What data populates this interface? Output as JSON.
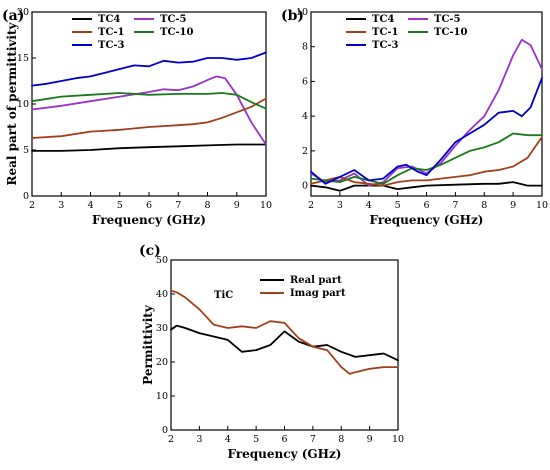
{
  "chart_data": [
    {
      "panel": "(a)",
      "type": "line",
      "xlabel": "Frequency (GHz)",
      "ylabel": "Real part of permittivity",
      "xlim": [
        2,
        10
      ],
      "ylim": [
        0,
        20
      ],
      "xticks": [
        2,
        3,
        4,
        5,
        6,
        7,
        8,
        9,
        10
      ],
      "yticks": [
        0,
        5,
        10,
        15,
        20
      ],
      "grid": false,
      "legend_placement": "top",
      "series": [
        {
          "name": "TC4",
          "color": "#000000",
          "x": [
            2,
            3,
            4,
            5,
            6,
            7,
            8,
            9,
            10
          ],
          "y": [
            4.9,
            4.9,
            5.0,
            5.2,
            5.3,
            5.4,
            5.5,
            5.6,
            5.6
          ]
        },
        {
          "name": "TC-5",
          "color": "#9933cc",
          "x": [
            2,
            3,
            4,
            5,
            6,
            6.5,
            7,
            7.5,
            8,
            8.3,
            8.6,
            9,
            9.5,
            10
          ],
          "y": [
            9.4,
            9.8,
            10.3,
            10.8,
            11.3,
            11.6,
            11.5,
            11.9,
            12.6,
            13.0,
            12.8,
            11.0,
            8.0,
            5.6
          ]
        },
        {
          "name": "TC-1",
          "color": "#a0401a",
          "x": [
            2,
            3,
            4,
            5,
            6,
            7,
            7.5,
            8,
            8.5,
            9,
            9.5,
            10
          ],
          "y": [
            6.3,
            6.5,
            7.0,
            7.2,
            7.5,
            7.7,
            7.8,
            8.0,
            8.5,
            9.1,
            9.7,
            10.6
          ]
        },
        {
          "name": "TC-10",
          "color": "#1a7a1a",
          "x": [
            2,
            3,
            4,
            5,
            6,
            7,
            8,
            8.5,
            9,
            9.5,
            10
          ],
          "y": [
            10.3,
            10.8,
            11.0,
            11.2,
            11.0,
            11.1,
            11.1,
            11.2,
            11.0,
            10.2,
            9.5
          ]
        },
        {
          "name": "TC-3",
          "color": "#0000cc",
          "x": [
            2,
            2.5,
            3,
            3.5,
            4,
            4.5,
            5,
            5.5,
            6,
            6.5,
            7,
            7.5,
            8,
            8.5,
            9,
            9.5,
            10
          ],
          "y": [
            12.0,
            12.2,
            12.5,
            12.8,
            13.0,
            13.4,
            13.8,
            14.2,
            14.1,
            14.7,
            14.5,
            14.6,
            15.0,
            15.0,
            14.8,
            15.0,
            15.6
          ]
        }
      ]
    },
    {
      "panel": "(b)",
      "type": "line",
      "xlabel": "Frequency (GHz)",
      "ylabel": "",
      "xlim": [
        2,
        10
      ],
      "ylim": [
        -0.6,
        10
      ],
      "xticks": [
        2,
        3,
        4,
        5,
        6,
        7,
        8,
        9,
        10
      ],
      "yticks": [
        0,
        2,
        4,
        6,
        8,
        10
      ],
      "grid": false,
      "legend_placement": "top",
      "series": [
        {
          "name": "TC4",
          "color": "#000000",
          "x": [
            2,
            2.5,
            3,
            3.5,
            4,
            4.5,
            5,
            5.5,
            6,
            7,
            8,
            8.5,
            9,
            9.5,
            10
          ],
          "y": [
            0.0,
            -0.1,
            -0.3,
            0.0,
            0.0,
            0.0,
            -0.2,
            -0.1,
            0.0,
            0.05,
            0.1,
            0.1,
            0.2,
            0.0,
            0.0
          ]
        },
        {
          "name": "TC-5",
          "color": "#9933cc",
          "x": [
            2,
            2.5,
            3,
            3.5,
            4,
            4.5,
            5,
            5.5,
            6,
            6.5,
            7,
            7.5,
            8,
            8.5,
            9,
            9.3,
            9.6,
            10
          ],
          "y": [
            0.7,
            0.2,
            0.3,
            0.7,
            0.0,
            0.2,
            1.0,
            1.1,
            0.7,
            1.3,
            2.3,
            3.2,
            4.0,
            5.5,
            7.5,
            8.4,
            8.1,
            6.7
          ]
        },
        {
          "name": "TC-1",
          "color": "#a0401a",
          "x": [
            2,
            2.5,
            3,
            3.5,
            4,
            4.5,
            5,
            5.5,
            6,
            6.5,
            7,
            7.5,
            8,
            8.5,
            9,
            9.5,
            10
          ],
          "y": [
            0.1,
            0.3,
            0.5,
            0.2,
            0.1,
            0.0,
            0.2,
            0.3,
            0.3,
            0.4,
            0.5,
            0.6,
            0.8,
            0.9,
            1.1,
            1.6,
            2.8
          ]
        },
        {
          "name": "TC-10",
          "color": "#1a7a1a",
          "x": [
            2,
            2.5,
            3,
            3.5,
            4,
            4.5,
            5,
            5.5,
            6,
            6.5,
            7,
            7.5,
            8,
            8.5,
            9,
            9.5,
            10
          ],
          "y": [
            0.4,
            0.3,
            0.2,
            0.5,
            0.3,
            0.1,
            0.6,
            1.0,
            0.9,
            1.2,
            1.6,
            2.0,
            2.2,
            2.5,
            3.0,
            2.9,
            2.9
          ]
        },
        {
          "name": "TC-3",
          "color": "#0000cc",
          "x": [
            2,
            2.5,
            3,
            3.5,
            4,
            4.5,
            5,
            5.3,
            5.7,
            6,
            6.5,
            7,
            7.5,
            8,
            8.5,
            9,
            9.3,
            9.6,
            10
          ],
          "y": [
            0.8,
            0.1,
            0.5,
            0.9,
            0.3,
            0.4,
            1.1,
            1.2,
            0.8,
            0.6,
            1.5,
            2.5,
            3.0,
            3.5,
            4.2,
            4.3,
            4.0,
            4.5,
            6.2
          ]
        }
      ]
    },
    {
      "panel": "(c)",
      "type": "line",
      "xlabel": "Frequency (GHz)",
      "ylabel": "Permittivity",
      "xlim": [
        2,
        10
      ],
      "ylim": [
        0,
        50
      ],
      "xticks": [
        2,
        3,
        4,
        5,
        6,
        7,
        8,
        9,
        10
      ],
      "yticks": [
        0,
        10,
        20,
        30,
        40,
        50
      ],
      "grid": false,
      "legend_placement": "top-right",
      "legend_title": "TiC",
      "series": [
        {
          "name": "Real part",
          "color": "#000000",
          "x": [
            2,
            2.2,
            2.5,
            3,
            3.5,
            4,
            4.5,
            5,
            5.5,
            6,
            6.5,
            7,
            7.5,
            8,
            8.5,
            9,
            9.5,
            10
          ],
          "y": [
            29.5,
            30.7,
            30.0,
            28.5,
            27.5,
            26.5,
            23.0,
            23.5,
            25.0,
            29.0,
            26.0,
            24.5,
            25.0,
            23.0,
            21.5,
            22.0,
            22.5,
            20.5
          ]
        },
        {
          "name": "Imag part",
          "color": "#a0401a",
          "x": [
            2,
            2.2,
            2.5,
            3,
            3.5,
            4,
            4.5,
            5,
            5.5,
            6,
            6.5,
            7,
            7.5,
            8,
            8.3,
            8.5,
            9,
            9.5,
            10
          ],
          "y": [
            41.0,
            40.5,
            39.0,
            35.5,
            31.0,
            30.0,
            30.5,
            30.0,
            32.0,
            31.5,
            27.0,
            24.5,
            23.5,
            18.5,
            16.5,
            17.0,
            18.0,
            18.5,
            18.5
          ]
        }
      ]
    }
  ]
}
